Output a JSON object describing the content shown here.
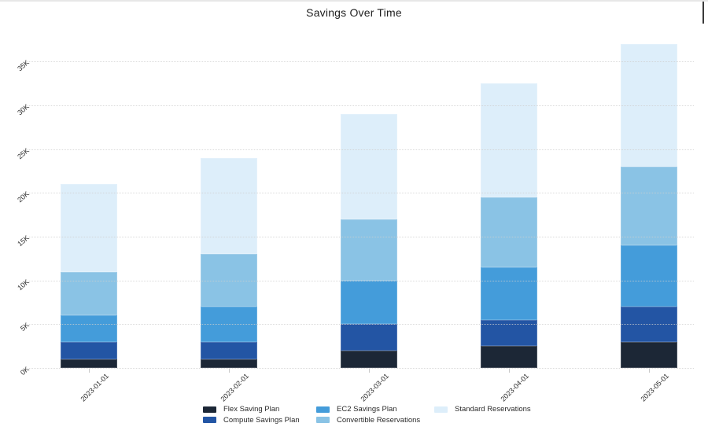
{
  "title": "Savings Over Time",
  "chart_data": {
    "type": "bar",
    "stacked": true,
    "title": "Savings Over Time",
    "categories": [
      "2023-01-01",
      "2023-02-01",
      "2023-03-01",
      "2023-04-01",
      "2023-05-01"
    ],
    "series": [
      {
        "name": "Flex Saving Plan",
        "color": "#1c2736",
        "values": [
          1000,
          1000,
          2000,
          2500,
          3000
        ]
      },
      {
        "name": "Compute Savings Plan",
        "color": "#2355a4",
        "values": [
          2000,
          2000,
          3000,
          3000,
          4000
        ]
      },
      {
        "name": "EC2 Savings Plan",
        "color": "#449cda",
        "values": [
          3000,
          4000,
          5000,
          6000,
          7000
        ]
      },
      {
        "name": "Convertible Reservations",
        "color": "#8ac3e5",
        "values": [
          5000,
          6000,
          7000,
          8000,
          9000
        ]
      },
      {
        "name": "Standard Reservations",
        "color": "#ddeefa",
        "values": [
          10000,
          11000,
          12000,
          13000,
          14000
        ]
      }
    ],
    "stack_totals": [
      21000,
      24000,
      29000,
      32500,
      37000
    ],
    "xlabel": "",
    "ylabel": "",
    "y_ticks": [
      {
        "label": "0K",
        "value": 0
      },
      {
        "label": "5K",
        "value": 5000
      },
      {
        "label": "10K",
        "value": 10000
      },
      {
        "label": "15K",
        "value": 15000
      },
      {
        "label": "20K",
        "value": 20000
      },
      {
        "label": "25K",
        "value": 25000
      },
      {
        "label": "30K",
        "value": 30000
      },
      {
        "label": "35K",
        "value": 35000
      }
    ],
    "ylim": [
      0,
      37500
    ],
    "grid": "horizontal-dotted",
    "legend_position": "bottom"
  }
}
